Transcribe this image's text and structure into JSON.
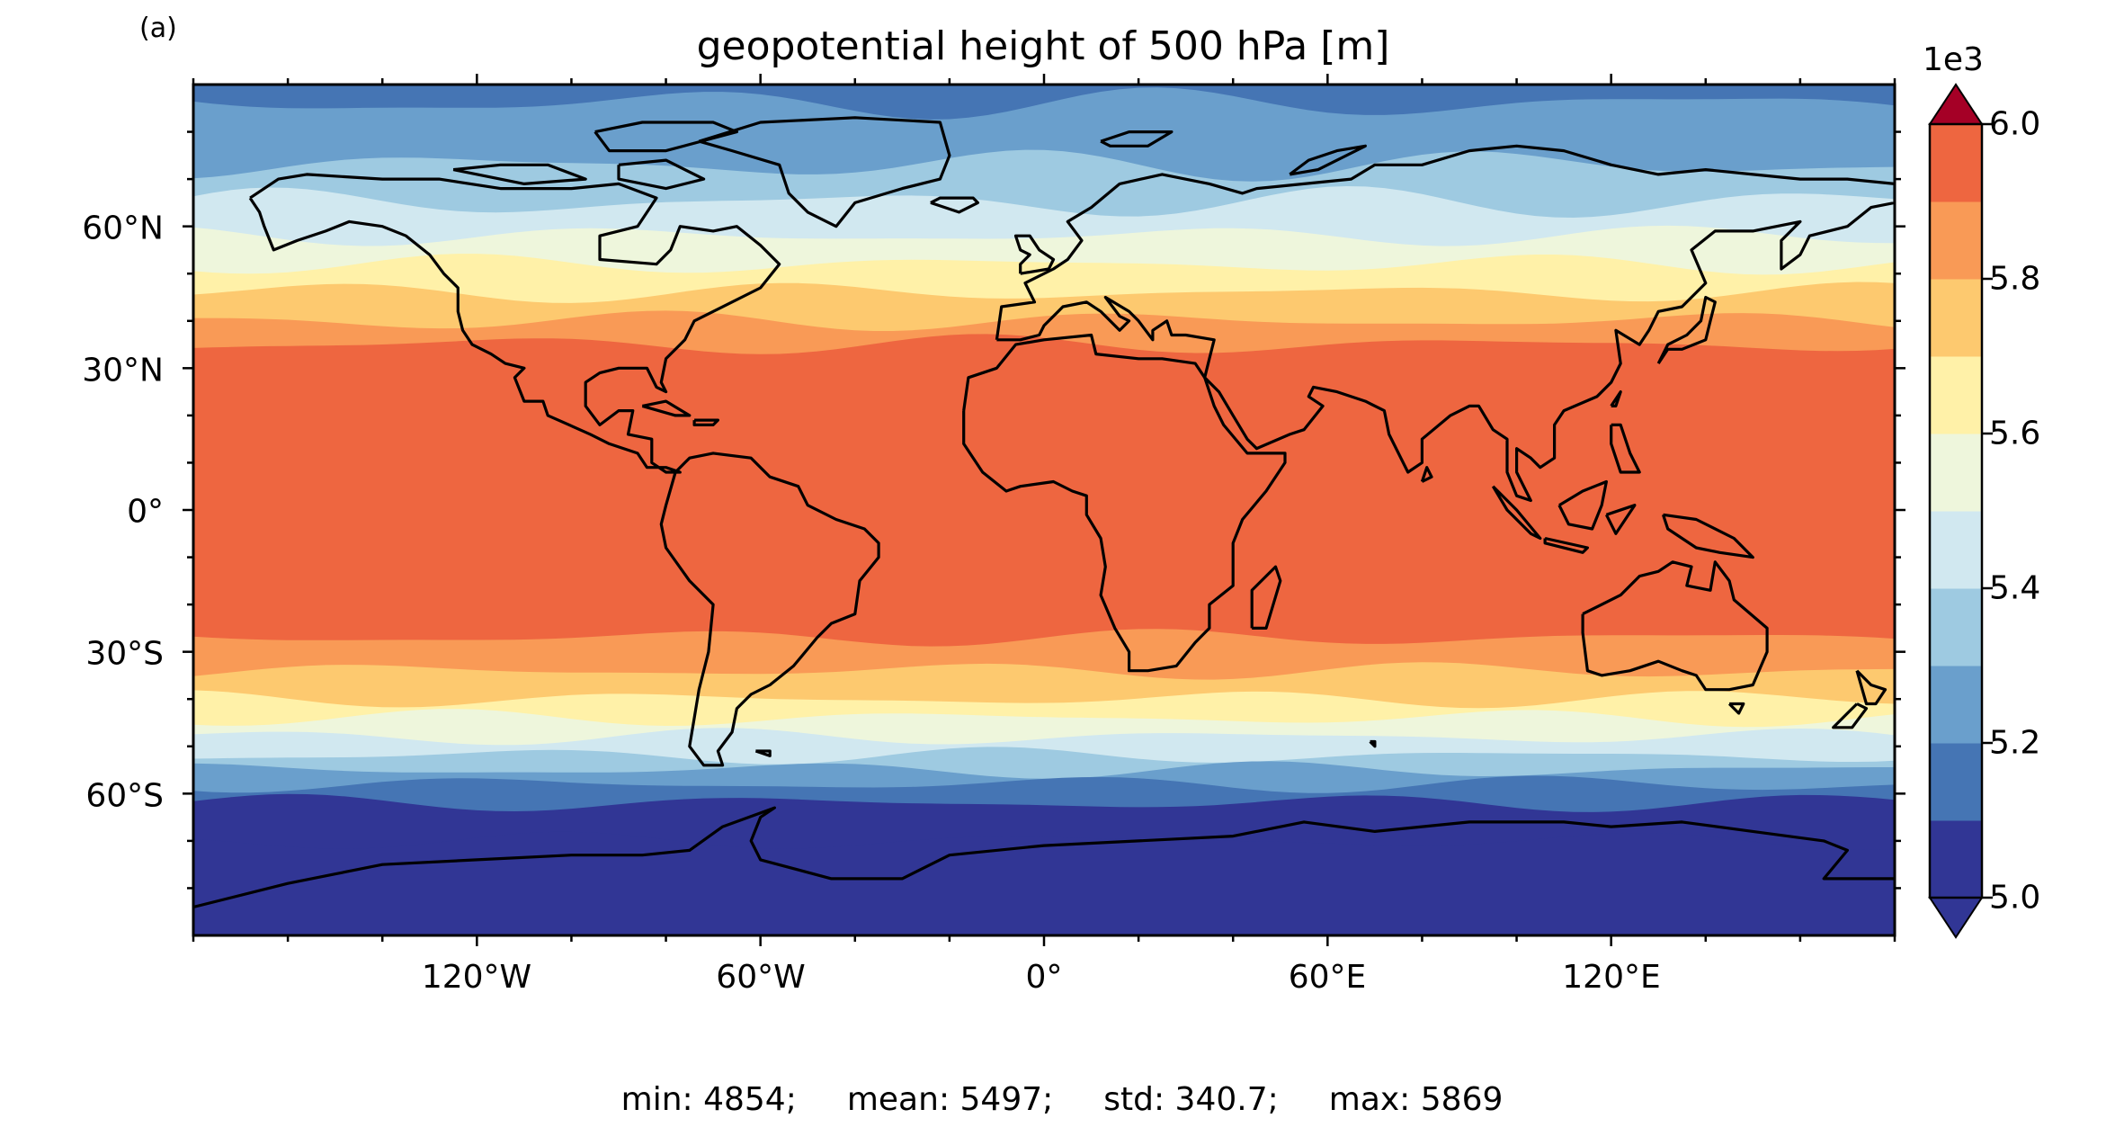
{
  "panel_label": "(a)",
  "title": "geopotential height of 500 hPa [m]",
  "colorbar": {
    "exponent_label": "1e3",
    "tick_labels": [
      "5.0",
      "5.2",
      "5.4",
      "5.6",
      "5.8",
      "6.0"
    ],
    "range": [
      5.0,
      6.0
    ],
    "levels": [
      5.0,
      5.1,
      5.2,
      5.3,
      5.4,
      5.5,
      5.6,
      5.7,
      5.8,
      5.9,
      6.0
    ],
    "colors": [
      "#313695",
      "#4575b4",
      "#6a9fcc",
      "#9ecae1",
      "#d1e8f0",
      "#eef6dc",
      "#fff1a8",
      "#fdc96f",
      "#f99a56",
      "#ee6640",
      "#d73027"
    ],
    "under_color": "#313695",
    "over_color": "#a50026",
    "extend": "both"
  },
  "axes": {
    "y_ticks": [
      "60°N",
      "30°N",
      "0°",
      "30°S",
      "60°S"
    ],
    "x_ticks": [
      "120°W",
      "60°W",
      "0°",
      "60°E",
      "120°E"
    ]
  },
  "map": {
    "projection": "PlateCarree",
    "variable": "z500",
    "lon_range": [
      -180,
      180
    ],
    "lat_range": [
      -90,
      90
    ],
    "coastlines": true
  },
  "stats": {
    "min": "min: 4854;",
    "mean": "mean: 5497;",
    "std": "std: 340.7;",
    "max": "max: 5869"
  }
}
